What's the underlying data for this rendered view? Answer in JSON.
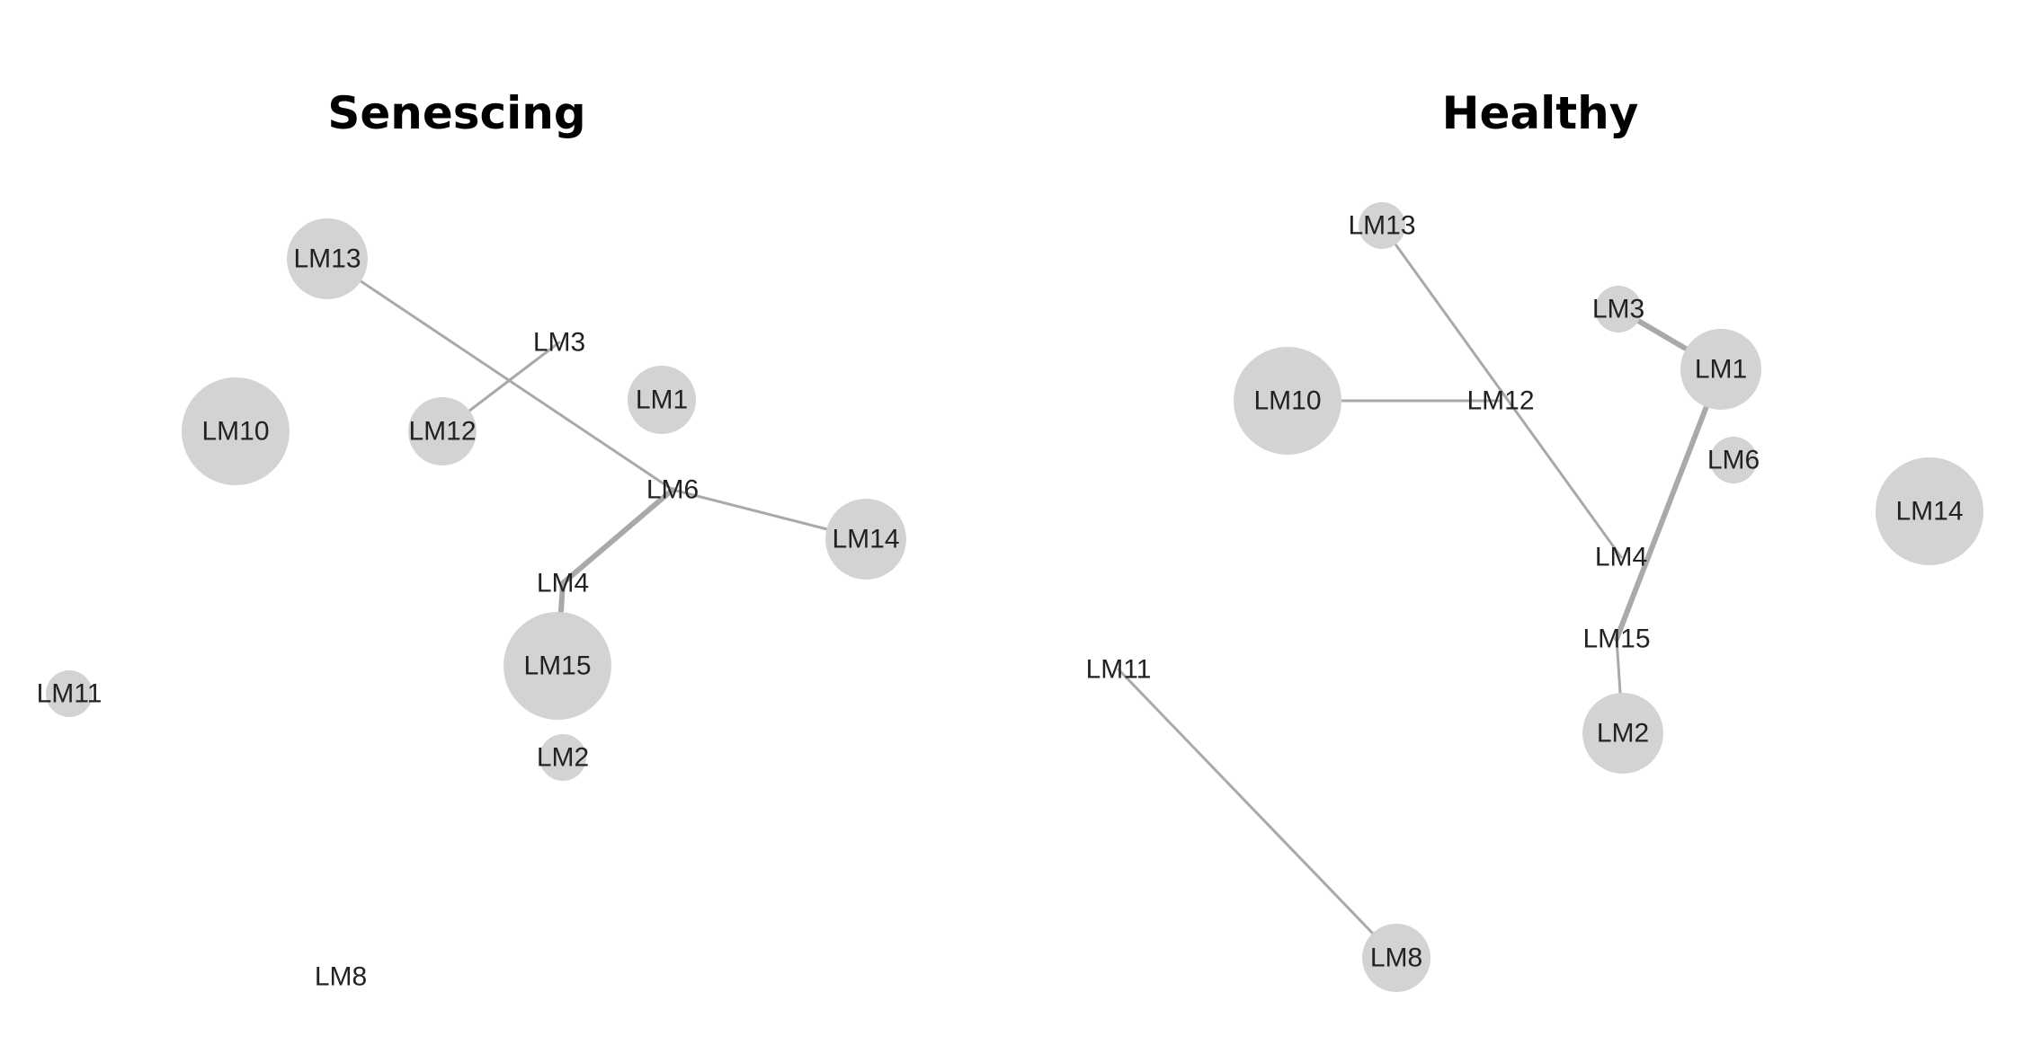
{
  "colors": {
    "node_fill": "#d3d3d3",
    "edge": "#a9a9a9",
    "label": "#222222"
  },
  "panels": [
    {
      "id": "senescing",
      "title": "Senescing",
      "nodes": [
        {
          "id": "LM13",
          "label": "LM13",
          "size": "medium"
        },
        {
          "id": "LM3",
          "label": "LM3",
          "size": "none"
        },
        {
          "id": "LM1",
          "label": "LM1",
          "size": "small"
        },
        {
          "id": "LM10",
          "label": "LM10",
          "size": "large"
        },
        {
          "id": "LM12",
          "label": "LM12",
          "size": "small"
        },
        {
          "id": "LM6",
          "label": "LM6",
          "size": "none"
        },
        {
          "id": "LM14",
          "label": "LM14",
          "size": "medium"
        },
        {
          "id": "LM4",
          "label": "LM4",
          "size": "none"
        },
        {
          "id": "LM15",
          "label": "LM15",
          "size": "large"
        },
        {
          "id": "LM11",
          "label": "LM11",
          "size": "tiny"
        },
        {
          "id": "LM2",
          "label": "LM2",
          "size": "tiny"
        },
        {
          "id": "LM8",
          "label": "LM8",
          "size": "none"
        }
      ],
      "edges": [
        {
          "source": "LM13",
          "target": "LM6",
          "weight": "thin"
        },
        {
          "source": "LM3",
          "target": "LM12",
          "weight": "thin"
        },
        {
          "source": "LM6",
          "target": "LM14",
          "weight": "thin"
        },
        {
          "source": "LM6",
          "target": "LM4",
          "weight": "thick"
        },
        {
          "source": "LM4",
          "target": "LM15",
          "weight": "thick"
        }
      ]
    },
    {
      "id": "healthy",
      "title": "Healthy",
      "nodes": [
        {
          "id": "LM13",
          "label": "LM13",
          "size": "tiny"
        },
        {
          "id": "LM3",
          "label": "LM3",
          "size": "tiny"
        },
        {
          "id": "LM1",
          "label": "LM1",
          "size": "medium"
        },
        {
          "id": "LM10",
          "label": "LM10",
          "size": "large"
        },
        {
          "id": "LM12",
          "label": "LM12",
          "size": "none"
        },
        {
          "id": "LM6",
          "label": "LM6",
          "size": "tiny"
        },
        {
          "id": "LM14",
          "label": "LM14",
          "size": "large"
        },
        {
          "id": "LM4",
          "label": "LM4",
          "size": "none"
        },
        {
          "id": "LM15",
          "label": "LM15",
          "size": "none"
        },
        {
          "id": "LM2",
          "label": "LM2",
          "size": "medium"
        },
        {
          "id": "LM11",
          "label": "LM11",
          "size": "none"
        },
        {
          "id": "LM8",
          "label": "LM8",
          "size": "small"
        }
      ],
      "edges": [
        {
          "source": "LM13",
          "target": "LM4",
          "weight": "thin"
        },
        {
          "source": "LM10",
          "target": "LM12",
          "weight": "thin"
        },
        {
          "source": "LM3",
          "target": "LM1",
          "weight": "thick"
        },
        {
          "source": "LM1",
          "target": "LM15",
          "weight": "thick"
        },
        {
          "source": "LM15",
          "target": "LM2",
          "weight": "thin"
        },
        {
          "source": "LM11",
          "target": "LM8",
          "weight": "thin"
        }
      ]
    }
  ]
}
